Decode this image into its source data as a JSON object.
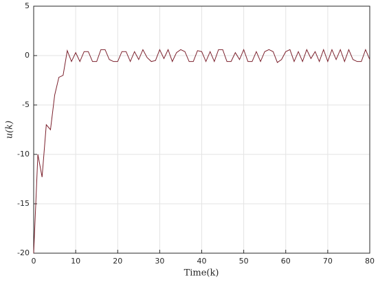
{
  "chart_data": {
    "type": "line",
    "xlabel": "Time(k)",
    "ylabel": "u(k)",
    "x": [
      0,
      1,
      2,
      3,
      4,
      5,
      6,
      7,
      8,
      9,
      10,
      11,
      12,
      13,
      14,
      15,
      16,
      17,
      18,
      19,
      20,
      21,
      22,
      23,
      24,
      25,
      26,
      27,
      28,
      29,
      30,
      31,
      32,
      33,
      34,
      35,
      36,
      37,
      38,
      39,
      40,
      41,
      42,
      43,
      44,
      45,
      46,
      47,
      48,
      49,
      50,
      51,
      52,
      53,
      54,
      55,
      56,
      57,
      58,
      59,
      60,
      61,
      62,
      63,
      64,
      65,
      66,
      67,
      68,
      69,
      70,
      71,
      72,
      73,
      74,
      75,
      76,
      77,
      78,
      79,
      80
    ],
    "series": [
      {
        "name": "u(k)",
        "color": "#7a1f2b",
        "values": [
          -20,
          -10,
          -12.3,
          -7,
          -7.5,
          -4,
          -2.2,
          -2,
          0.5,
          -0.6,
          0.3,
          -0.6,
          0.4,
          0.4,
          -0.6,
          -0.6,
          0.6,
          0.6,
          -0.4,
          -0.6,
          -0.6,
          0.4,
          0.4,
          -0.6,
          0.4,
          -0.4,
          0.6,
          -0.2,
          -0.6,
          -0.5,
          0.6,
          -0.3,
          0.6,
          -0.6,
          0.3,
          0.6,
          0.4,
          -0.6,
          -0.6,
          0.5,
          0.4,
          -0.6,
          0.4,
          -0.6,
          0.6,
          0.6,
          -0.6,
          -0.6,
          0.3,
          -0.4,
          0.6,
          -0.6,
          -0.6,
          0.4,
          -0.6,
          0.4,
          0.6,
          0.4,
          -0.7,
          -0.4,
          0.4,
          0.6,
          -0.6,
          0.4,
          -0.6,
          0.6,
          -0.3,
          0.4,
          -0.6,
          0.6,
          -0.6,
          0.6,
          -0.4,
          0.6,
          -0.6,
          0.6,
          -0.4,
          -0.6,
          -0.6,
          0.6,
          -0.4
        ]
      }
    ],
    "xlim": [
      0,
      80
    ],
    "xticks": [
      0,
      10,
      20,
      30,
      40,
      50,
      60,
      70,
      80
    ],
    "ylim": [
      -20,
      5
    ],
    "yticks": [
      -20,
      -15,
      -10,
      -5,
      0,
      5
    ],
    "grid": true
  }
}
